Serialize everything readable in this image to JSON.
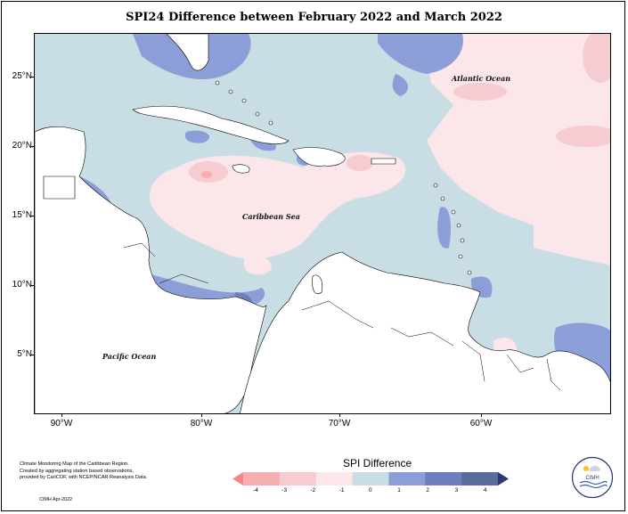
{
  "title": "SPI24 Difference between February 2022 and March 2022",
  "map": {
    "y_ticks": [
      "25°N",
      "20°N",
      "15°N",
      "10°N",
      "5°N"
    ],
    "x_ticks": [
      "90°W",
      "80°W",
      "70°W",
      "60°W"
    ],
    "labels": {
      "atlantic": "Atlantic Ocean",
      "caribbean": "Caribbean Sea",
      "pacific": "Pacific Ocean"
    }
  },
  "caption": {
    "line1": "Climate Monitoring Map of the Caribbean Region.",
    "line2": "Created by aggregating station based observations,",
    "line3": "provided by CariCOF, with NCEP/NCAR Reanalysis Data.",
    "date": "CIMH Apr-2022"
  },
  "legend": {
    "title": "SPI Difference",
    "ticks": [
      "-4",
      "-3",
      "-2",
      "-1",
      "0",
      "1",
      "2",
      "3",
      "4"
    ],
    "colors": [
      "#f4868a",
      "#f7aeb1",
      "#f6ccd0",
      "#fbe6ea",
      "#c9dde4",
      "#8c9ed8",
      "#6d80bd",
      "#596d9a",
      "#2c3870"
    ]
  },
  "logo": {
    "text": "CIMH"
  }
}
